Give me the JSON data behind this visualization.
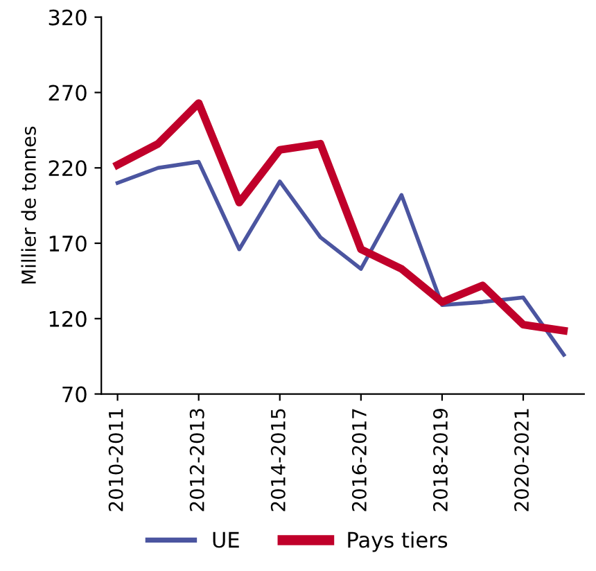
{
  "chart_data": {
    "type": "line",
    "ylabel": "Millier de tonnes",
    "categories": [
      "2010-2011",
      null,
      "2012-2013",
      null,
      "2014-2015",
      null,
      "2016-2017",
      null,
      "2018-2019",
      null,
      "2020-2021",
      null
    ],
    "series": [
      {
        "name": "UE",
        "color": "#4b55a0",
        "values": [
          210,
          220,
          224,
          166,
          211,
          174,
          153,
          202,
          129,
          131,
          134,
          96
        ]
      },
      {
        "name": "Pays tiers",
        "color": "#c0002a",
        "values": [
          222,
          236,
          263,
          197,
          232,
          236,
          166,
          153,
          131,
          142,
          116,
          112
        ]
      }
    ],
    "ylim": [
      70,
      320
    ],
    "yticks": [
      70,
      120,
      170,
      220,
      270,
      320
    ],
    "grid": false,
    "legend": "bottom",
    "marker": "none",
    "line_style": "solid"
  }
}
